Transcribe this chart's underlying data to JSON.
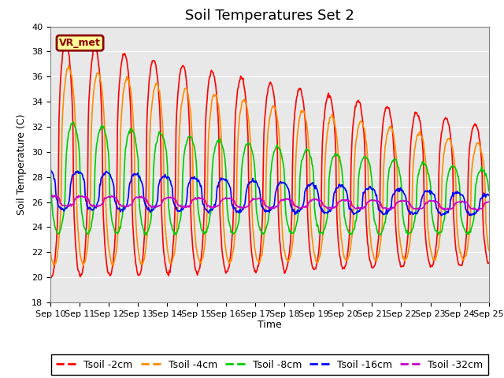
{
  "title": "Soil Temperatures Set 2",
  "xlabel": "Time",
  "ylabel": "Soil Temperature (C)",
  "ylim": [
    18,
    40
  ],
  "x_tick_labels": [
    "Sep 10",
    "Sep 11",
    "Sep 12",
    "Sep 13",
    "Sep 14",
    "Sep 15",
    "Sep 16",
    "Sep 17",
    "Sep 18",
    "Sep 19",
    "Sep 20",
    "Sep 21",
    "Sep 22",
    "Sep 23",
    "Sep 24",
    "Sep 25"
  ],
  "colors": {
    "Tsoil -2cm": "#FF0000",
    "Tsoil -4cm": "#FF8C00",
    "Tsoil -8cm": "#00CC00",
    "Tsoil -16cm": "#0000FF",
    "Tsoil -32cm": "#CC00CC"
  },
  "bg_color": "#E8E8E8",
  "fig_bg_color": "#FFFFFF",
  "vr_met_label": "VR_met",
  "vr_met_bg": "#FFFF99",
  "vr_met_border": "#8B0000",
  "title_fontsize": 13,
  "axis_label_fontsize": 9,
  "tick_fontsize": 8,
  "legend_fontsize": 9,
  "line_width": 1.2
}
